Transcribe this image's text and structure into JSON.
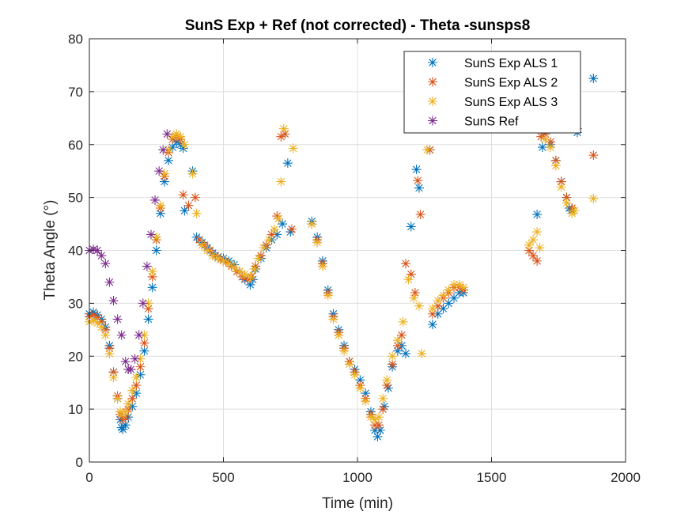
{
  "chart_data": {
    "type": "scatter",
    "title": "SunS Exp + Ref (not corrected) - Theta -sunsps8",
    "xlabel": "Time (min)",
    "ylabel": "Theta Angle (°)",
    "xlim": [
      0,
      2000
    ],
    "ylim": [
      0,
      80
    ],
    "xticks": [
      0,
      500,
      1000,
      1500,
      2000
    ],
    "yticks": [
      0,
      10,
      20,
      30,
      40,
      50,
      60,
      70,
      80
    ],
    "grid": true,
    "legend_position": "top-right",
    "marker": "*",
    "series": [
      {
        "name": "SunS Exp ALS 1",
        "color": "#0072BD",
        "points": [
          [
            0,
            28
          ],
          [
            15,
            28.3
          ],
          [
            30,
            27.8
          ],
          [
            45,
            27
          ],
          [
            60,
            25.5
          ],
          [
            75,
            22
          ],
          [
            90,
            17
          ],
          [
            105,
            12
          ],
          [
            115,
            8
          ],
          [
            120,
            6.5
          ],
          [
            125,
            6.2
          ],
          [
            135,
            7
          ],
          [
            145,
            8.5
          ],
          [
            160,
            10.5
          ],
          [
            175,
            13
          ],
          [
            190,
            16.5
          ],
          [
            205,
            21
          ],
          [
            220,
            27
          ],
          [
            235,
            33
          ],
          [
            250,
            40
          ],
          [
            265,
            47
          ],
          [
            280,
            53
          ],
          [
            295,
            57
          ],
          [
            310,
            59.5
          ],
          [
            325,
            60.5
          ],
          [
            340,
            60
          ],
          [
            350,
            59.3
          ],
          [
            355,
            47.5
          ],
          [
            385,
            55
          ],
          [
            400,
            42.5
          ],
          [
            420,
            41.5
          ],
          [
            440,
            40.5
          ],
          [
            460,
            39.5
          ],
          [
            480,
            38.8
          ],
          [
            500,
            38.5
          ],
          [
            520,
            38
          ],
          [
            540,
            37.3
          ],
          [
            560,
            36
          ],
          [
            580,
            34.5
          ],
          [
            600,
            33.5
          ],
          [
            610,
            34.5
          ],
          [
            620,
            36.5
          ],
          [
            640,
            38.5
          ],
          [
            660,
            40.5
          ],
          [
            680,
            42
          ],
          [
            700,
            43
          ],
          [
            720,
            45
          ],
          [
            740,
            56.5
          ],
          [
            750,
            43.5
          ],
          [
            830,
            45.5
          ],
          [
            850,
            42.5
          ],
          [
            870,
            38
          ],
          [
            890,
            32.5
          ],
          [
            910,
            28
          ],
          [
            930,
            25
          ],
          [
            950,
            22
          ],
          [
            970,
            19
          ],
          [
            990,
            17.5
          ],
          [
            1010,
            15.5
          ],
          [
            1030,
            13
          ],
          [
            1050,
            9.5
          ],
          [
            1065,
            6
          ],
          [
            1075,
            4.8
          ],
          [
            1085,
            6
          ],
          [
            1100,
            10.5
          ],
          [
            1115,
            14
          ],
          [
            1130,
            18
          ],
          [
            1150,
            21
          ],
          [
            1165,
            22
          ],
          [
            1180,
            20.5
          ],
          [
            1200,
            44.5
          ],
          [
            1220,
            55.3
          ],
          [
            1230,
            51.8
          ],
          [
            1270,
            59
          ],
          [
            1280,
            26
          ],
          [
            1300,
            28
          ],
          [
            1320,
            29
          ],
          [
            1340,
            30
          ],
          [
            1360,
            31
          ],
          [
            1380,
            32
          ],
          [
            1395,
            32
          ],
          [
            1670,
            46.8
          ],
          [
            1690,
            59.5
          ],
          [
            1700,
            62
          ],
          [
            1720,
            60
          ],
          [
            1740,
            57
          ],
          [
            1760,
            53
          ],
          [
            1780,
            50
          ],
          [
            1790,
            48
          ],
          [
            1800,
            47.5
          ],
          [
            1820,
            62.3
          ],
          [
            1880,
            72.5
          ]
        ]
      },
      {
        "name": "SunS Exp ALS 2",
        "color": "#D95319",
        "points": [
          [
            0,
            27.5
          ],
          [
            15,
            27.8
          ],
          [
            30,
            27.3
          ],
          [
            45,
            26.5
          ],
          [
            60,
            25
          ],
          [
            75,
            21.5
          ],
          [
            90,
            17
          ],
          [
            105,
            12.5
          ],
          [
            115,
            9
          ],
          [
            125,
            8
          ],
          [
            135,
            8.5
          ],
          [
            145,
            10
          ],
          [
            160,
            12
          ],
          [
            175,
            14.5
          ],
          [
            190,
            18
          ],
          [
            205,
            22.5
          ],
          [
            220,
            29
          ],
          [
            235,
            35
          ],
          [
            250,
            42
          ],
          [
            265,
            48
          ],
          [
            280,
            54
          ],
          [
            295,
            58.5
          ],
          [
            310,
            61
          ],
          [
            325,
            61.5
          ],
          [
            340,
            61
          ],
          [
            350,
            50.5
          ],
          [
            370,
            48.5
          ],
          [
            395,
            50
          ],
          [
            410,
            42
          ],
          [
            430,
            41
          ],
          [
            450,
            40
          ],
          [
            470,
            39
          ],
          [
            490,
            38.3
          ],
          [
            510,
            37.8
          ],
          [
            530,
            37
          ],
          [
            550,
            36
          ],
          [
            570,
            35
          ],
          [
            590,
            34.5
          ],
          [
            605,
            35
          ],
          [
            620,
            37
          ],
          [
            640,
            39
          ],
          [
            660,
            41
          ],
          [
            680,
            43
          ],
          [
            700,
            46.5
          ],
          [
            715,
            61.5
          ],
          [
            730,
            62
          ],
          [
            755,
            44
          ],
          [
            830,
            45
          ],
          [
            850,
            42
          ],
          [
            870,
            37.5
          ],
          [
            890,
            32
          ],
          [
            910,
            27.5
          ],
          [
            930,
            24.5
          ],
          [
            950,
            21.5
          ],
          [
            970,
            19
          ],
          [
            990,
            17
          ],
          [
            1010,
            14.5
          ],
          [
            1030,
            12
          ],
          [
            1050,
            9
          ],
          [
            1065,
            7
          ],
          [
            1080,
            7
          ],
          [
            1095,
            10
          ],
          [
            1110,
            14.5
          ],
          [
            1130,
            18.5
          ],
          [
            1150,
            22
          ],
          [
            1165,
            24
          ],
          [
            1180,
            37.5
          ],
          [
            1200,
            35.5
          ],
          [
            1215,
            32
          ],
          [
            1225,
            53.2
          ],
          [
            1235,
            46.8
          ],
          [
            1270,
            59
          ],
          [
            1280,
            28
          ],
          [
            1300,
            29.5
          ],
          [
            1320,
            31
          ],
          [
            1340,
            32
          ],
          [
            1360,
            33
          ],
          [
            1380,
            33
          ],
          [
            1395,
            32.5
          ],
          [
            1640,
            40
          ],
          [
            1655,
            39
          ],
          [
            1670,
            38
          ],
          [
            1685,
            61.5
          ],
          [
            1700,
            62
          ],
          [
            1720,
            60.5
          ],
          [
            1740,
            57
          ],
          [
            1760,
            53
          ],
          [
            1780,
            50
          ],
          [
            1800,
            48
          ],
          [
            1820,
            63
          ],
          [
            1880,
            58
          ]
        ]
      },
      {
        "name": "SunS Exp ALS 3",
        "color": "#EDB120",
        "points": [
          [
            0,
            26.5
          ],
          [
            15,
            26.8
          ],
          [
            30,
            26.3
          ],
          [
            45,
            25.5
          ],
          [
            60,
            24
          ],
          [
            75,
            20.5
          ],
          [
            90,
            16
          ],
          [
            105,
            12
          ],
          [
            115,
            9.5
          ],
          [
            125,
            9
          ],
          [
            135,
            9.5
          ],
          [
            145,
            11
          ],
          [
            160,
            13.5
          ],
          [
            175,
            16
          ],
          [
            190,
            19.5
          ],
          [
            205,
            24
          ],
          [
            220,
            30
          ],
          [
            235,
            36
          ],
          [
            250,
            42.5
          ],
          [
            265,
            48.5
          ],
          [
            280,
            54.5
          ],
          [
            295,
            59
          ],
          [
            310,
            61.5
          ],
          [
            325,
            62
          ],
          [
            340,
            61.5
          ],
          [
            355,
            60
          ],
          [
            385,
            54.5
          ],
          [
            400,
            47
          ],
          [
            420,
            41
          ],
          [
            440,
            40
          ],
          [
            460,
            39
          ],
          [
            480,
            38.5
          ],
          [
            500,
            38
          ],
          [
            520,
            37.5
          ],
          [
            540,
            36.8
          ],
          [
            560,
            36
          ],
          [
            580,
            35.5
          ],
          [
            600,
            35
          ],
          [
            615,
            36.5
          ],
          [
            630,
            38.5
          ],
          [
            650,
            40.5
          ],
          [
            670,
            42
          ],
          [
            690,
            44
          ],
          [
            705,
            46
          ],
          [
            715,
            53
          ],
          [
            725,
            63
          ],
          [
            760,
            59.3
          ],
          [
            830,
            45
          ],
          [
            850,
            41.5
          ],
          [
            870,
            37
          ],
          [
            890,
            31.5
          ],
          [
            910,
            27
          ],
          [
            930,
            24
          ],
          [
            950,
            21
          ],
          [
            970,
            18.5
          ],
          [
            990,
            16.5
          ],
          [
            1010,
            14
          ],
          [
            1030,
            11.5
          ],
          [
            1050,
            8.5
          ],
          [
            1065,
            8
          ],
          [
            1080,
            8.5
          ],
          [
            1095,
            12
          ],
          [
            1110,
            15.5
          ],
          [
            1130,
            20
          ],
          [
            1150,
            23
          ],
          [
            1170,
            26.5
          ],
          [
            1190,
            34.5
          ],
          [
            1210,
            31
          ],
          [
            1230,
            29.5
          ],
          [
            1240,
            20.5
          ],
          [
            1260,
            59
          ],
          [
            1280,
            29
          ],
          [
            1300,
            30.5
          ],
          [
            1320,
            31.5
          ],
          [
            1340,
            32.5
          ],
          [
            1360,
            33.5
          ],
          [
            1380,
            33.5
          ],
          [
            1395,
            33
          ],
          [
            1640,
            41
          ],
          [
            1655,
            42
          ],
          [
            1670,
            43.5
          ],
          [
            1680,
            40.5
          ],
          [
            1700,
            61
          ],
          [
            1720,
            59.5
          ],
          [
            1740,
            56
          ],
          [
            1760,
            52
          ],
          [
            1780,
            49
          ],
          [
            1800,
            47
          ],
          [
            1810,
            47.5
          ],
          [
            1880,
            49.8
          ]
        ]
      },
      {
        "name": "SunS Ref",
        "color": "#7E2F8E",
        "points": [
          [
            0,
            40
          ],
          [
            15,
            40.2
          ],
          [
            30,
            40
          ],
          [
            45,
            39
          ],
          [
            60,
            37.5
          ],
          [
            75,
            34
          ],
          [
            90,
            30.5
          ],
          [
            105,
            27
          ],
          [
            120,
            24
          ],
          [
            135,
            19
          ],
          [
            145,
            17.5
          ],
          [
            155,
            17.5
          ],
          [
            170,
            19.5
          ],
          [
            185,
            24
          ],
          [
            200,
            30
          ],
          [
            215,
            37
          ],
          [
            230,
            43
          ],
          [
            245,
            49.5
          ],
          [
            260,
            55
          ],
          [
            275,
            59
          ],
          [
            290,
            62
          ]
        ]
      }
    ]
  }
}
